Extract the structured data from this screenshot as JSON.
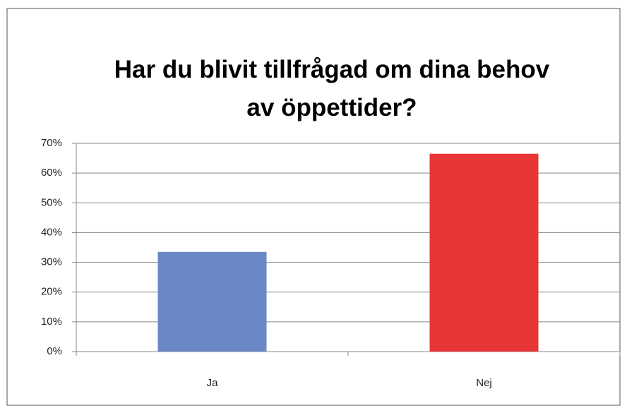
{
  "chart_data": {
    "type": "bar",
    "title": "Har du blivit tillfrågad om dina behov\nav öppettider?",
    "categories": [
      "Ja",
      "Nej"
    ],
    "values": [
      33.5,
      66.5
    ],
    "colors": [
      "#6a87c6",
      "#e83535"
    ],
    "ylim": [
      0,
      70
    ],
    "yticks": [
      {
        "value": 0,
        "label": "0%"
      },
      {
        "value": 10,
        "label": "10%"
      },
      {
        "value": 20,
        "label": "20%"
      },
      {
        "value": 30,
        "label": "30%"
      },
      {
        "value": 40,
        "label": "40%"
      },
      {
        "value": 50,
        "label": "50%"
      },
      {
        "value": 60,
        "label": "60%"
      },
      {
        "value": 70,
        "label": "70%"
      }
    ],
    "grid": true
  }
}
